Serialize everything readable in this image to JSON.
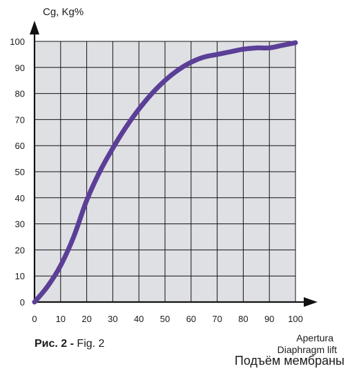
{
  "chart_data": {
    "type": "line",
    "ylabel": "Cg, Kg%",
    "xlabel_lines": [
      "Apertura",
      "Diaphragm lift",
      "Подъём мембраны"
    ],
    "xlim": [
      0,
      100
    ],
    "ylim": [
      0,
      100
    ],
    "x_ticks": [
      0,
      10,
      20,
      30,
      40,
      50,
      60,
      70,
      80,
      90,
      100
    ],
    "y_ticks": [
      0,
      10,
      20,
      30,
      40,
      50,
      60,
      70,
      80,
      90,
      100
    ],
    "grid": true,
    "series": [
      {
        "color": "#5b3f97",
        "x": [
          0,
          5,
          10,
          15,
          20,
          25,
          30,
          35,
          40,
          45,
          50,
          55,
          60,
          65,
          70,
          75,
          80,
          85,
          90,
          95,
          100
        ],
        "y": [
          0,
          6,
          14,
          25,
          39,
          50,
          59,
          67,
          74,
          80,
          85,
          89,
          92,
          94,
          95,
          96,
          97,
          97.5,
          97.5,
          98.5,
          99.5
        ]
      }
    ]
  },
  "caption": {
    "prefix": "Рис.  2  -",
    "text": " Fig. 2"
  }
}
